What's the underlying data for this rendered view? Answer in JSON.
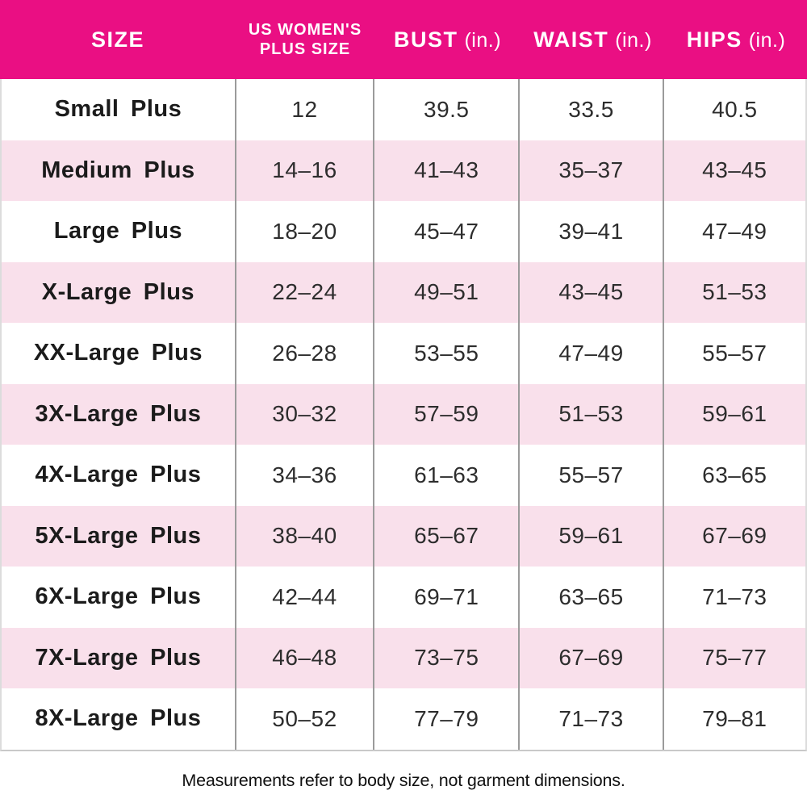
{
  "header": {
    "size": "SIZE",
    "plus_line1": "US WOMEN'S",
    "plus_line2": "PLUS SIZE",
    "bust": "BUST",
    "waist": "WAIST",
    "hips": "HIPS",
    "unit": "(in.)"
  },
  "chart_data": {
    "type": "table",
    "title": "Women's plus size chart",
    "columns": [
      "SIZE",
      "US WOMEN'S PLUS SIZE",
      "BUST (in.)",
      "WAIST (in.)",
      "HIPS (in.)"
    ],
    "rows": [
      [
        "Small Plus",
        "12",
        "39.5",
        "33.5",
        "40.5"
      ],
      [
        "Medium Plus",
        "14–16",
        "41–43",
        "35–37",
        "43–45"
      ],
      [
        "Large Plus",
        "18–20",
        "45–47",
        "39–41",
        "47–49"
      ],
      [
        "X-Large Plus",
        "22–24",
        "49–51",
        "43–45",
        "51–53"
      ],
      [
        "XX-Large Plus",
        "26–28",
        "53–55",
        "47–49",
        "55–57"
      ],
      [
        "3X-Large Plus",
        "30–32",
        "57–59",
        "51–53",
        "59–61"
      ],
      [
        "4X-Large Plus",
        "34–36",
        "61–63",
        "55–57",
        "63–65"
      ],
      [
        "5X-Large Plus",
        "38–40",
        "65–67",
        "59–61",
        "67–69"
      ],
      [
        "6X-Large Plus",
        "42–44",
        "69–71",
        "63–65",
        "71–73"
      ],
      [
        "7X-Large Plus",
        "46–48",
        "73–75",
        "67–69",
        "75–77"
      ],
      [
        "8X-Large Plus",
        "50–52",
        "77–79",
        "71–73",
        "79–81"
      ]
    ],
    "footnote": "Measurements refer to body size, not garment dimensions.",
    "layout": {
      "striped": true,
      "stripe_rows": "even (2nd, 4th, ...)",
      "column_dividers": true
    }
  },
  "footer": {
    "note": "Measurements refer to body size, not garment dimensions."
  },
  "colors": {
    "header_bg": "#EA0F83",
    "header_text": "#FFFFFF",
    "row_bg": "#FFFFFF",
    "row_alt_bg": "#F9E0EB",
    "column_divider": "#9B9B9B",
    "outer_border": "#DCDCDC",
    "bottom_border": "#C9C9C9",
    "label_text": "#1B1B1B",
    "value_text": "#2D2D2D",
    "note_text": "#111111"
  }
}
